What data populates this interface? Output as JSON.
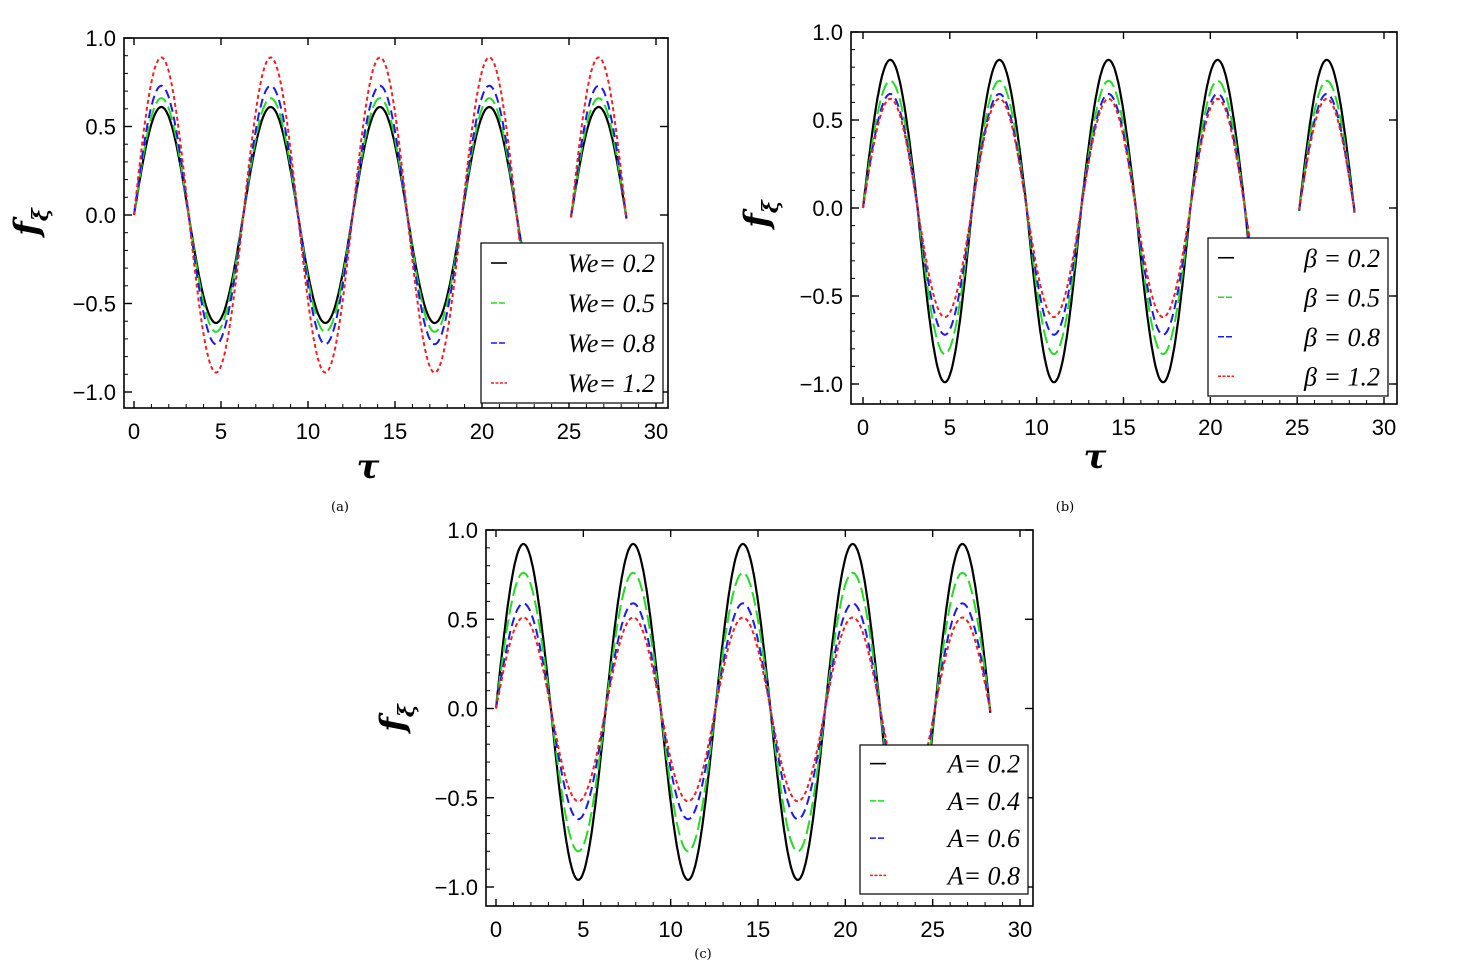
{
  "chart_data": [
    {
      "type": "line",
      "caption": "(a)",
      "xlabel": "τ",
      "ylabel": "f",
      "ylabel_sub": "ξ",
      "xlim": [
        0,
        30
      ],
      "ylim": [
        -1.05,
        1.0
      ],
      "xticks": [
        "0",
        "5",
        "10",
        "15",
        "20",
        "25",
        "30"
      ],
      "yticks": [
        "-1.0",
        "-0.5",
        "0.0",
        "0.5",
        "1.0"
      ],
      "clip": [
        [
          22.3,
          25.1
        ]
      ],
      "series": [
        {
          "name": "We= 0.2",
          "amplitude": 0.61,
          "color": "#000000",
          "dash": "solid"
        },
        {
          "name": "We= 0.5",
          "amplitude": 0.66,
          "color": "#22dd22",
          "dash": "long"
        },
        {
          "name": "We= 0.8",
          "amplitude": 0.73,
          "color": "#1a1aee",
          "dash": "medium"
        },
        {
          "name": "We= 1.2",
          "amplitude": 0.89,
          "color": "#ee2222",
          "dash": "short"
        }
      ]
    },
    {
      "type": "line",
      "caption": "(b)",
      "xlabel": "τ",
      "ylabel": "f",
      "ylabel_sub": "ξ",
      "xlim": [
        0,
        30
      ],
      "ylim": [
        -1.05,
        1.0
      ],
      "xticks": [
        "0",
        "5",
        "10",
        "15",
        "20",
        "25",
        "30"
      ],
      "yticks": [
        "-1.0",
        "-0.5",
        "0.0",
        "0.5",
        "1.0"
      ],
      "clip": [
        [
          22.4,
          25.1
        ]
      ],
      "series": [
        {
          "name": "β = 0.2",
          "amplitude": 0.99,
          "color": "#000000",
          "dash": "solid",
          "pos_scale": 0.85
        },
        {
          "name": "β = 0.5",
          "amplitude": 0.83,
          "color": "#22dd22",
          "dash": "long",
          "pos_scale": 0.87
        },
        {
          "name": "β = 0.8",
          "amplitude": 0.72,
          "color": "#1a1aee",
          "dash": "medium",
          "pos_scale": 0.9
        },
        {
          "name": "β = 1.2",
          "amplitude": 0.62,
          "color": "#ee2222",
          "dash": "short",
          "pos_scale": 1.0
        }
      ]
    },
    {
      "type": "line",
      "caption": "(c)",
      "xlabel": "",
      "ylabel": "f",
      "ylabel_sub": "ξ",
      "xlim": [
        0,
        30
      ],
      "ylim": [
        -1.05,
        1.0
      ],
      "xticks": [
        "0",
        "5",
        "10",
        "15",
        "20",
        "25",
        "30"
      ],
      "yticks": [
        "-1.0",
        "-0.5",
        "0.0",
        "0.5",
        "1.0"
      ],
      "clip": [
        [
          22.4,
          24.7
        ]
      ],
      "series": [
        {
          "name": "A= 0.2",
          "amplitude": 0.96,
          "color": "#000000",
          "dash": "solid",
          "pos_scale": 0.96
        },
        {
          "name": "A= 0.4",
          "amplitude": 0.8,
          "color": "#22dd22",
          "dash": "long",
          "pos_scale": 0.95
        },
        {
          "name": "A= 0.6",
          "amplitude": 0.62,
          "color": "#1a1aee",
          "dash": "medium",
          "pos_scale": 0.95
        },
        {
          "name": "A= 0.8",
          "amplitude": 0.52,
          "color": "#ee2222",
          "dash": "short",
          "pos_scale": 0.98
        }
      ]
    }
  ]
}
